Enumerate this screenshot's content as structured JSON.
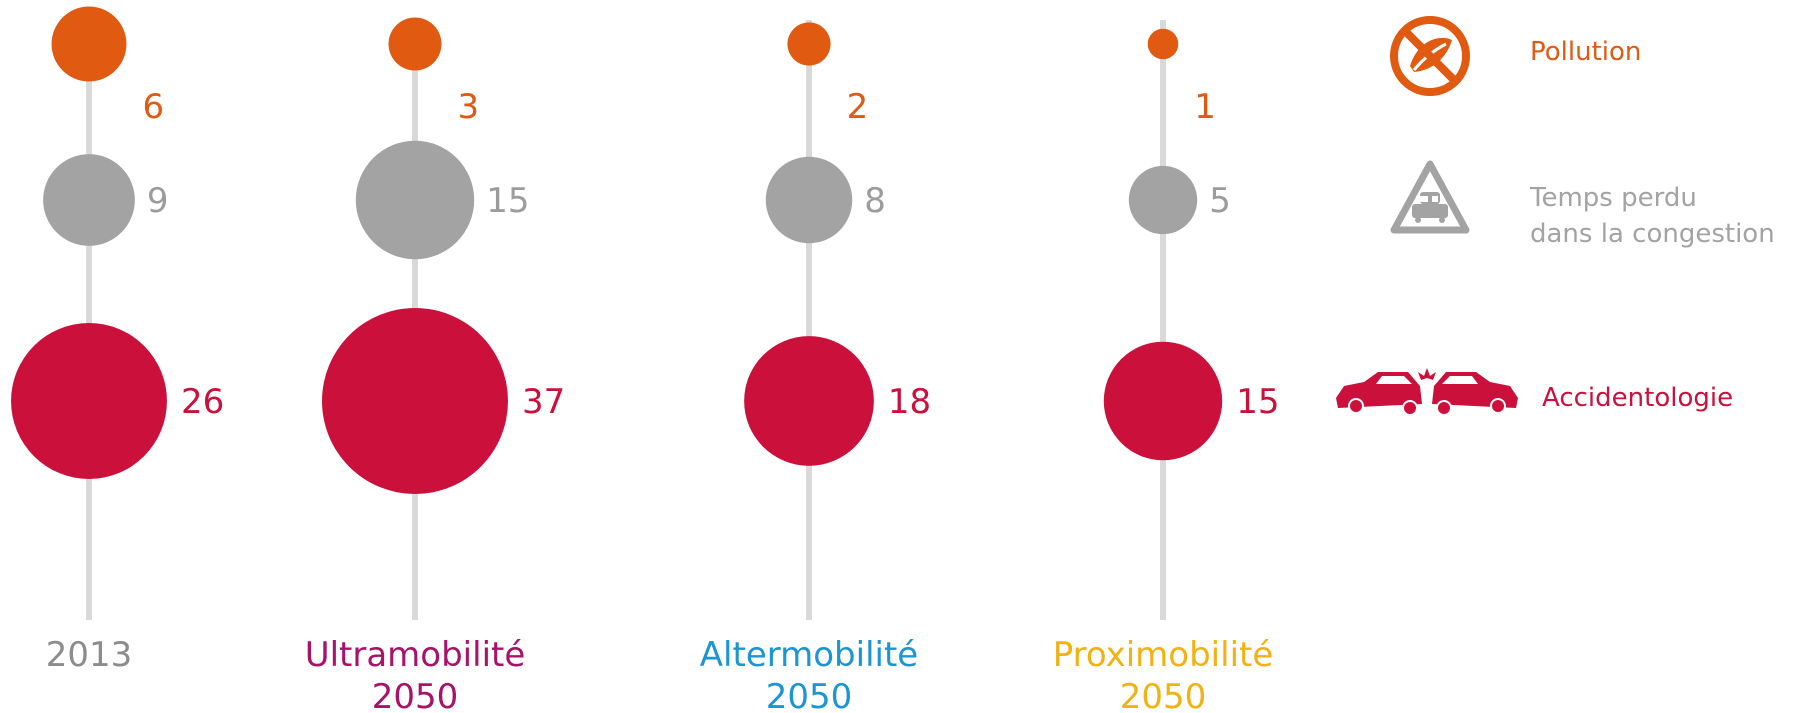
{
  "chart_data": {
    "type": "bubble",
    "categories": [
      {
        "line1": "2013",
        "line2": "",
        "color": "#8c8c8c"
      },
      {
        "line1": "Ultramobilité",
        "line2": "2050",
        "color": "#a8126a"
      },
      {
        "line1": "Altermobilité",
        "line2": "2050",
        "color": "#1b95d3"
      },
      {
        "line1": "Proximobilité",
        "line2": "2050",
        "color": "#f2b213"
      }
    ],
    "series": [
      {
        "name": "Pollution",
        "color": "#e05a12",
        "values": [
          6,
          3,
          2,
          1
        ]
      },
      {
        "name": "Temps perdu dans la congestion",
        "color": "#a3a3a3",
        "label_color": "#9c9c9c",
        "values": [
          9,
          15,
          8,
          5
        ]
      },
      {
        "name": "Accidentologie",
        "color": "#cc103c",
        "values": [
          26,
          37,
          18,
          15
        ]
      }
    ]
  },
  "legend": [
    {
      "icon": "no-pollution-icon",
      "line1": "Pollution",
      "line2": "",
      "color": "#e05a12"
    },
    {
      "icon": "traffic-jam-warning-icon",
      "line1": "Temps perdu",
      "line2": "dans la congestion",
      "color": "#a3a3a3"
    },
    {
      "icon": "car-crash-icon",
      "line1": "Accidentologie",
      "line2": "",
      "color": "#cc103c"
    }
  ],
  "colors": {
    "axis_line": "#d9d9d9"
  }
}
